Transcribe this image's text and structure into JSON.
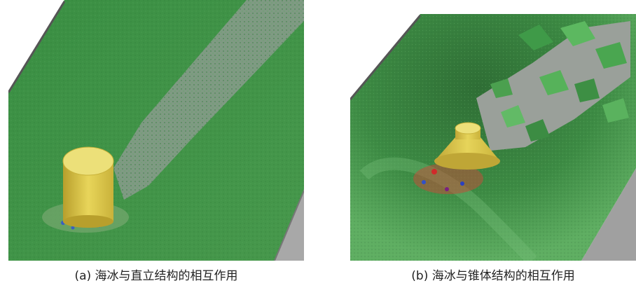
{
  "figures": [
    {
      "caption": "(a) 海冰与直立结构的相互作用",
      "structure_color": "#e8d55a",
      "ice_color": "#3f8f45",
      "channel_color": "#7f9a83"
    },
    {
      "caption": "(b) 海冰与锥体结构的相互作用",
      "structure_color": "#e6d45a",
      "ice_color": "#3d8b44",
      "channel_color": "#9aa09a"
    }
  ]
}
